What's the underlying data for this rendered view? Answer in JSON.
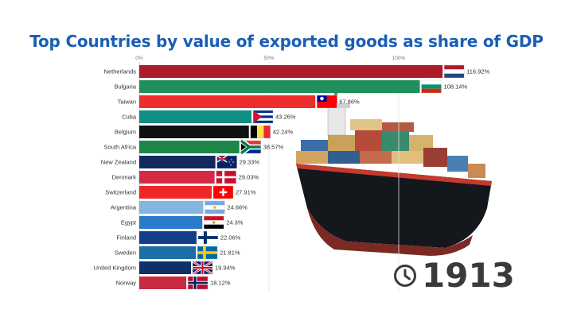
{
  "chart_data": {
    "type": "bar",
    "orientation": "horizontal",
    "title": "Top Countries by value of exported goods as share of GDP",
    "x_ticks": [
      "0%",
      "50%",
      "100%"
    ],
    "xlim": [
      0,
      120
    ],
    "grid": true,
    "categories": [
      "Netherlands",
      "Bulgaria",
      "Taiwan",
      "Cuba",
      "Belgium",
      "South Africa",
      "New Zealand",
      "Denmark",
      "Switzerland",
      "Argentina",
      "Egypt",
      "Finland",
      "Sweden",
      "United Kingdom",
      "Norway"
    ],
    "values": [
      116.92,
      108.14,
      67.86,
      43.26,
      42.24,
      38.57,
      29.33,
      29.03,
      27.91,
      24.66,
      24.3,
      22.06,
      21.81,
      19.94,
      18.12
    ],
    "value_labels": [
      "116.92%",
      "108.14%",
      "67.86%",
      "43.26%",
      "42.24%",
      "38.57%",
      "29.33%",
      "29.03%",
      "27.91%",
      "24.66%",
      "24.3%",
      "22.06%",
      "21.81%",
      "19.94%",
      "18.12%"
    ],
    "bar_colors": [
      "#ad1a2a",
      "#1f8f5c",
      "#ee2d2d",
      "#0f8f86",
      "#111111",
      "#1e8748",
      "#12285f",
      "#d42a45",
      "#f02626",
      "#86b5e0",
      "#2a7bc9",
      "#123f8a",
      "#1b6fa6",
      "#10306c",
      "#c82a42"
    ],
    "flags": [
      "netherlands-flag",
      "bulgaria-flag",
      "taiwan-flag",
      "cuba-flag",
      "belgium-flag",
      "south-africa-flag",
      "new-zealand-flag",
      "denmark-flag",
      "switzerland-flag",
      "argentina-flag",
      "egypt-flag",
      "finland-flag",
      "sweden-flag",
      "united-kingdom-flag",
      "norway-flag"
    ]
  },
  "year": "1913",
  "icons": {
    "clock": "clock-icon",
    "ship": "cargo-ship-icon"
  }
}
